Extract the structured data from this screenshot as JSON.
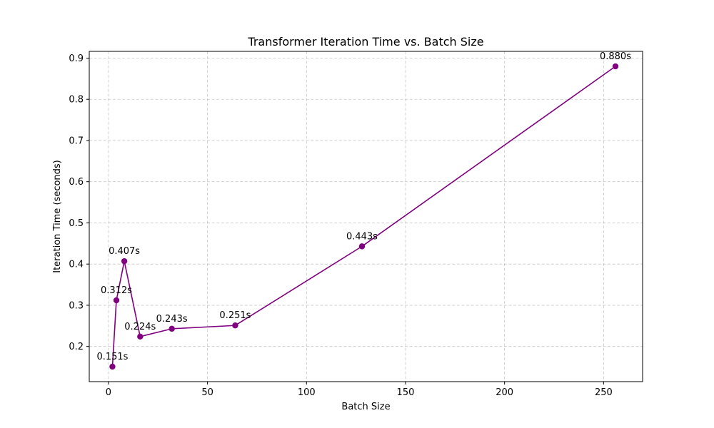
{
  "chart_data": {
    "type": "line",
    "title": "Transformer Iteration Time vs. Batch Size",
    "xlabel": "Batch Size",
    "ylabel": "Iteration Time (seconds)",
    "xlim": [
      -9.7,
      269.7
    ],
    "ylim": [
      0.1146,
      0.9164
    ],
    "x_ticks": [
      0,
      50,
      100,
      150,
      200,
      250
    ],
    "y_ticks": [
      0.2,
      0.3,
      0.4,
      0.5,
      0.6,
      0.7,
      0.8,
      0.9
    ],
    "x_tick_labels": [
      "0",
      "50",
      "100",
      "150",
      "200",
      "250"
    ],
    "y_tick_labels": [
      "0.2",
      "0.3",
      "0.4",
      "0.5",
      "0.6",
      "0.7",
      "0.8",
      "0.9"
    ],
    "grid": true,
    "series": [
      {
        "x": [
          2,
          4,
          8,
          16,
          32,
          64,
          128,
          256
        ],
        "values": [
          0.151,
          0.312,
          0.407,
          0.224,
          0.243,
          0.251,
          0.443,
          0.88
        ],
        "labels": [
          "0.151s",
          "0.312s",
          "0.407s",
          "0.224s",
          "0.243s",
          "0.251s",
          "0.443s",
          "0.880s"
        ],
        "color": "#800080",
        "marker": "circle"
      }
    ],
    "grid_color": "#b0b0b0",
    "axis_color": "#000000"
  }
}
